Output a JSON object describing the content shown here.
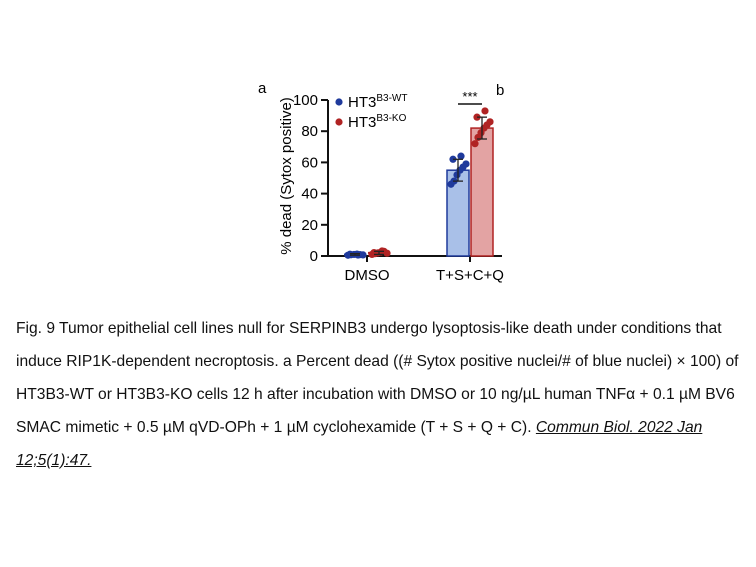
{
  "chart_data": {
    "type": "bar",
    "panel_labels": [
      "a",
      "b"
    ],
    "ylabel": "% dead (Sytox positive)",
    "ylim": [
      0,
      100
    ],
    "yticks": [
      0,
      20,
      40,
      60,
      80,
      100
    ],
    "categories": [
      "DMSO",
      "T+S+C+Q"
    ],
    "legend_position": "top-left",
    "series": [
      {
        "name_base": "HT3",
        "name_sup": "B3-WT",
        "color": "#1f3a9c",
        "fill": "#a9c0e8",
        "values": [
          1,
          55
        ],
        "errors": [
          0.5,
          7
        ],
        "points": [
          [
            0.5,
            0.8,
            1.0,
            1.2,
            0.9,
            0.7,
            1.1,
            0.6
          ],
          [
            46,
            48,
            52,
            55,
            57,
            59,
            62,
            64
          ]
        ]
      },
      {
        "name_base": "HT3",
        "name_sup": "B3-KO",
        "color": "#b02323",
        "fill": "#e3a3a3",
        "values": [
          2,
          82
        ],
        "errors": [
          1,
          7
        ],
        "points": [
          [
            1.0,
            1.5,
            2.0,
            2.5,
            3.0,
            1.8,
            2.2,
            3.2
          ],
          [
            72,
            76,
            79,
            82,
            84,
            86,
            89,
            93
          ]
        ]
      }
    ],
    "annotations": [
      {
        "text": "***",
        "category": "T+S+C+Q"
      }
    ]
  },
  "caption": {
    "text": "Fig. 9 Tumor epithelial cell lines null for SERPINB3 undergo lysoptosis-like death under conditions that induce RIP1K-dependent necroptosis. a Percent dead ((# Sytox positive nuclei/# of blue nuclei) × 100) of HT3B3-WT or HT3B3-KO cells 12 h after incubation with DMSO or 10 ng/µL human TNFα + 0.1 µM BV6 SMAC mimetic + 0.5 µM qVD-OPh + 1 µM cyclohexamide (T + S + Q + C).",
    "citation": "Commun Biol. 2022 Jan 12;5(1):47."
  }
}
